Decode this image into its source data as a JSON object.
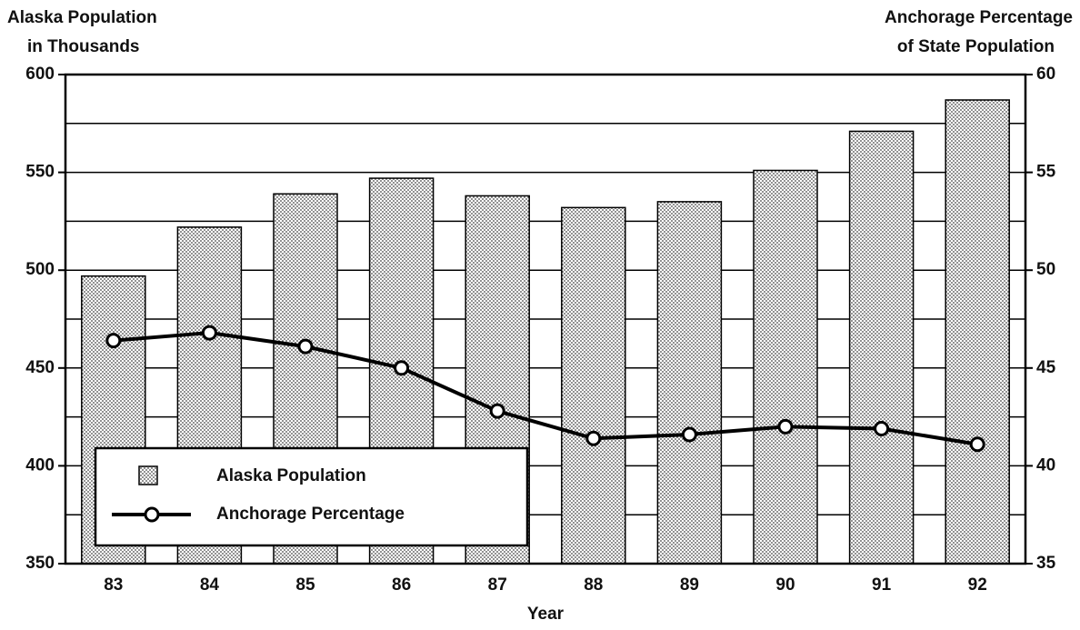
{
  "chart_data": {
    "type": "bar_line",
    "y_axis_label": [
      "Alaska Population",
      "in Thousands"
    ],
    "y2_axis_label": [
      "Anchorage Percentage",
      "of State Population"
    ],
    "x_axis_label": "Year",
    "categories": [
      "83",
      "84",
      "85",
      "86",
      "87",
      "88",
      "89",
      "90",
      "91",
      "92"
    ],
    "series": [
      {
        "name": "Alaska Population",
        "type": "bar",
        "color": "#c8c8c8",
        "values": [
          497,
          522,
          539,
          547,
          538,
          532,
          535,
          551,
          571,
          587
        ]
      },
      {
        "name": "Anchorage Percentage",
        "type": "line",
        "axis": "y2",
        "color": "#000000",
        "values": [
          46.4,
          46.8,
          46.1,
          45.0,
          42.8,
          41.4,
          41.6,
          42.0,
          41.9,
          41.1
        ]
      }
    ],
    "ylim": [
      350,
      600
    ],
    "yticks": [
      350,
      400,
      450,
      500,
      550,
      600
    ],
    "yminor_grid": [
      375,
      425,
      475,
      525,
      575
    ],
    "y2lim": [
      35,
      60
    ],
    "y2ticks": [
      35,
      40,
      45,
      50,
      55,
      60
    ],
    "grid": true,
    "legend": "lower left"
  }
}
